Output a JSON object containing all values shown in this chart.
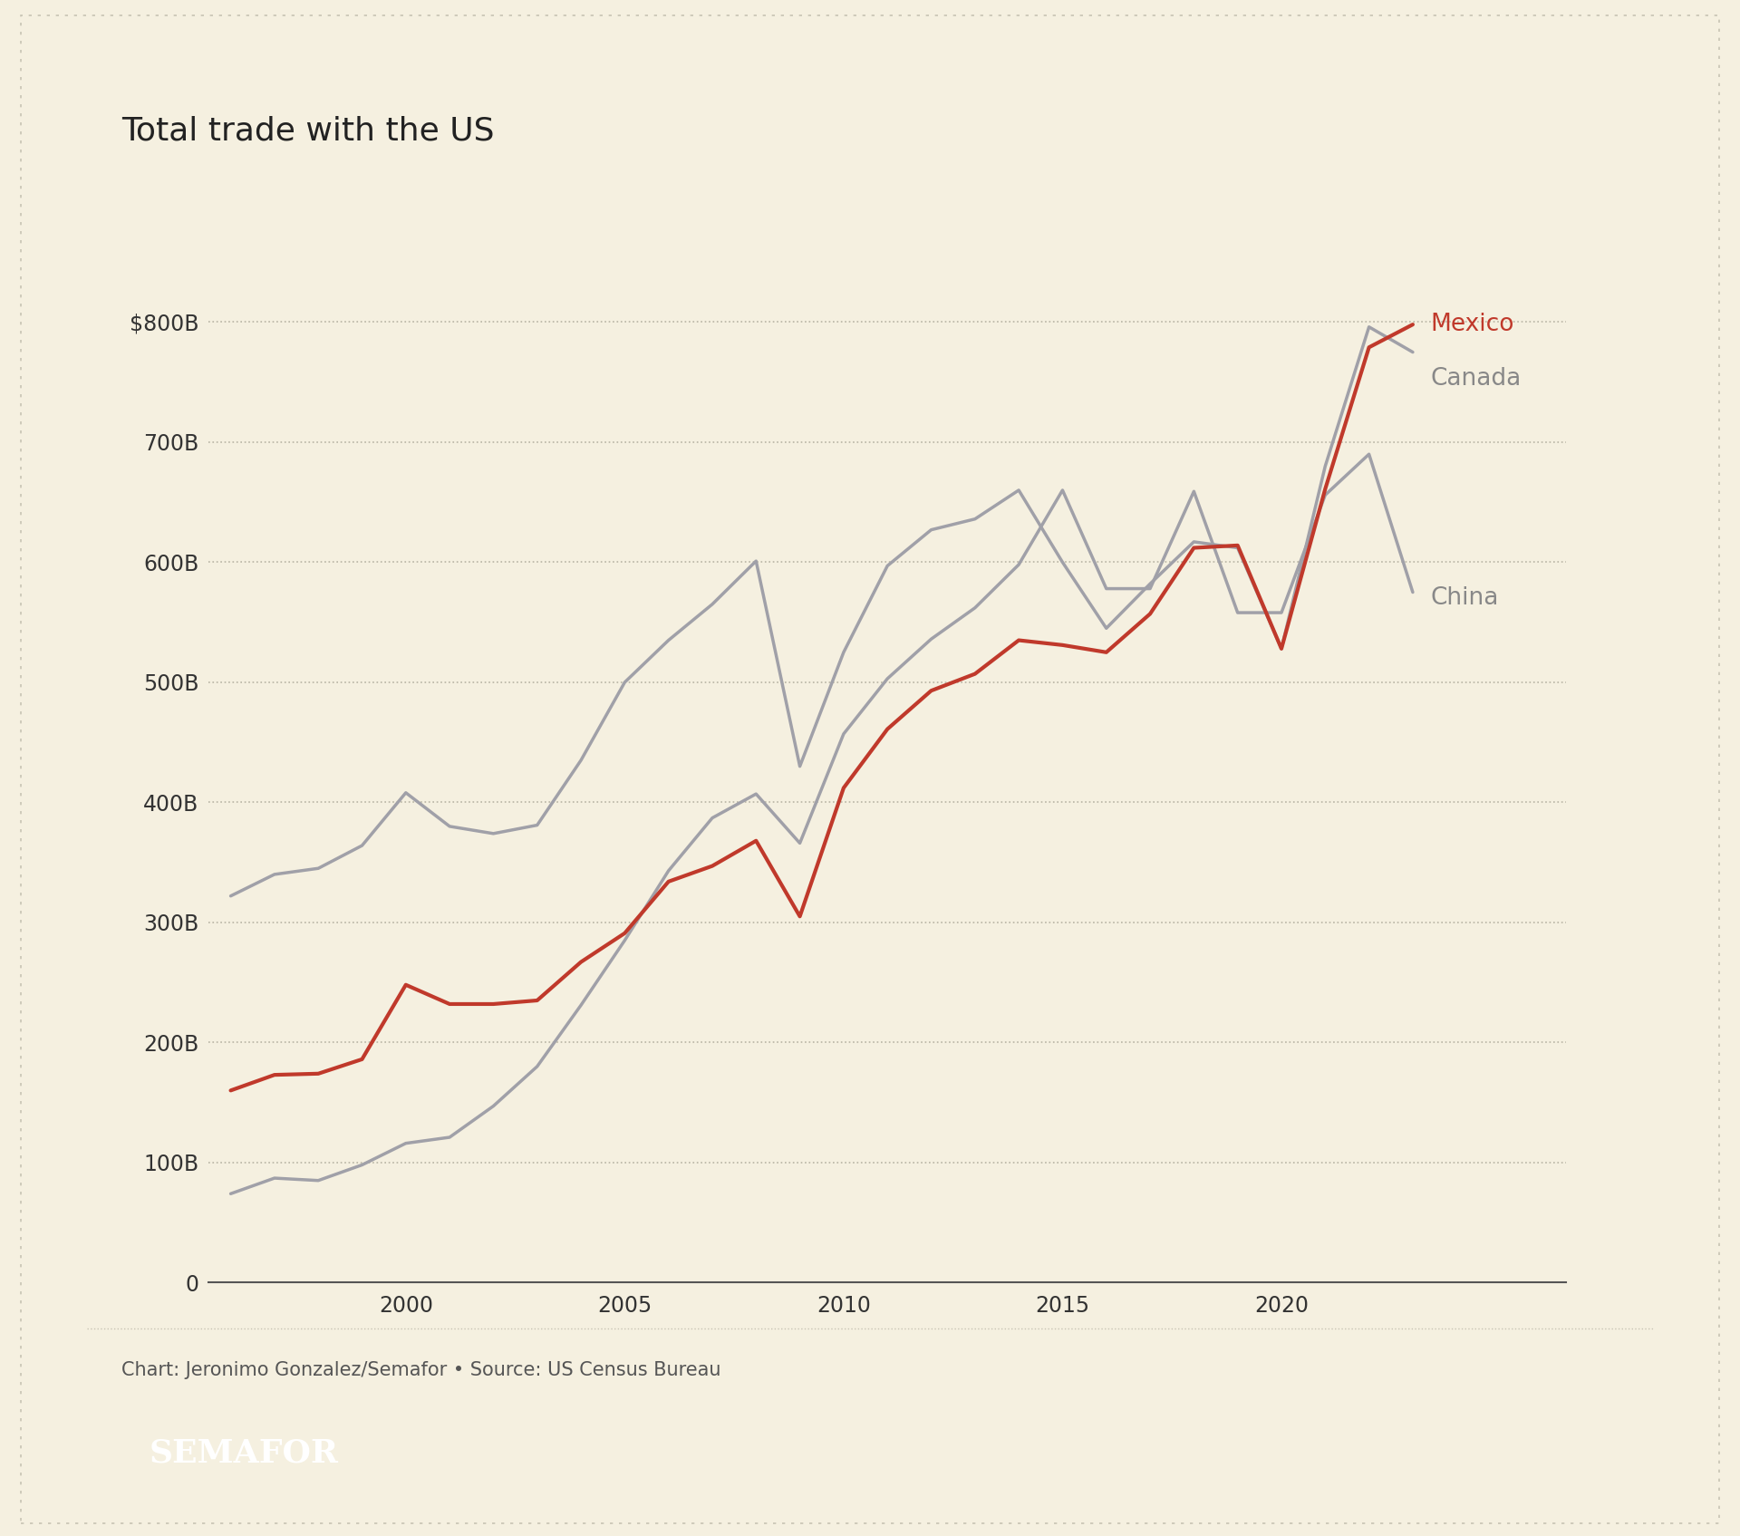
{
  "title": "Total trade with the US",
  "background_color": "#f5f0e0",
  "plot_bg_color": "#f5f0e0",
  "mexico_color": "#c0392b",
  "canada_color": "#a0a0a8",
  "china_color": "#a0a0a8",
  "border_color": "#c8c4b4",
  "years": [
    1996,
    1997,
    1998,
    1999,
    2000,
    2001,
    2002,
    2003,
    2004,
    2005,
    2006,
    2007,
    2008,
    2009,
    2010,
    2011,
    2012,
    2013,
    2014,
    2015,
    2016,
    2017,
    2018,
    2019,
    2020,
    2021,
    2022,
    2023
  ],
  "mexico": [
    160,
    173,
    174,
    186,
    248,
    232,
    232,
    235,
    267,
    291,
    334,
    347,
    368,
    305,
    412,
    461,
    493,
    507,
    535,
    531,
    525,
    557,
    612,
    614,
    528,
    661,
    779,
    798
  ],
  "canada": [
    322,
    340,
    345,
    364,
    408,
    380,
    374,
    381,
    435,
    500,
    535,
    565,
    601,
    430,
    525,
    597,
    627,
    636,
    660,
    600,
    545,
    582,
    617,
    612,
    528,
    680,
    796,
    775
  ],
  "china": [
    74,
    87,
    85,
    98,
    116,
    121,
    147,
    180,
    231,
    285,
    343,
    387,
    407,
    366,
    457,
    503,
    536,
    562,
    598,
    660,
    578,
    578,
    659,
    558,
    558,
    656,
    690,
    575
  ],
  "ylim": [
    0,
    870
  ],
  "yticks": [
    0,
    100,
    200,
    300,
    400,
    500,
    600,
    700,
    800
  ],
  "ytick_labels": [
    "0",
    "100B",
    "200B",
    "300B",
    "400B",
    "500B",
    "600B",
    "700B",
    "$800B"
  ],
  "xticks": [
    2000,
    2005,
    2010,
    2015,
    2020
  ],
  "footer_text": "Chart: Jeronimo Gonzalez/Semafor • Source: US Census Bureau",
  "semafor_text": "SEMAFOR",
  "title_fontsize": 26,
  "label_fontsize": 17,
  "annotation_fontsize": 19,
  "footer_fontsize": 15,
  "semafor_fontsize": 26
}
